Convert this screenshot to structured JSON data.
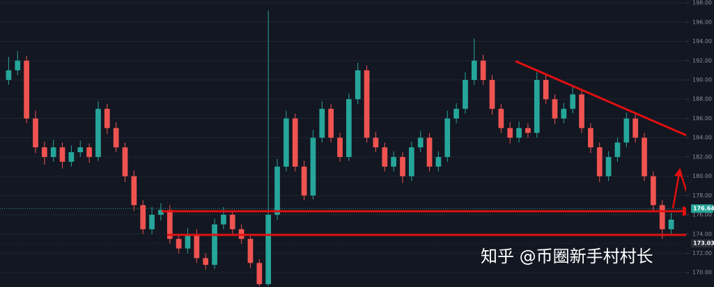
{
  "chart_data": {
    "type": "candlestick",
    "ylim": [
      168.5,
      198.3
    ],
    "yticks": [
      {
        "value": 198,
        "label": "198.00"
      },
      {
        "value": 196,
        "label": "196.00"
      },
      {
        "value": 194,
        "label": "194.00"
      },
      {
        "value": 192,
        "label": "192.00"
      },
      {
        "value": 190,
        "label": "190.00"
      },
      {
        "value": 188,
        "label": "188.00"
      },
      {
        "value": 186,
        "label": "186.00"
      },
      {
        "value": 184,
        "label": "184.00"
      },
      {
        "value": 182,
        "label": "182.00"
      },
      {
        "value": 180,
        "label": "180.00"
      },
      {
        "value": 178,
        "label": "178.00"
      },
      {
        "value": 176,
        "label": "176.00"
      },
      {
        "value": 174,
        "label": "174.00"
      },
      {
        "value": 172,
        "label": "172.00"
      },
      {
        "value": 170,
        "label": "170.00"
      }
    ],
    "up_color": "#26a69a",
    "down_color": "#ef5350",
    "price_labels": [
      {
        "value": 176.64,
        "label": "176.64",
        "color": "#26a69a"
      },
      {
        "value": 173.03,
        "label": "173.03",
        "color": "#2a2e39"
      }
    ],
    "watermark": "知乎 @币圈新手村村长",
    "ohlc": [
      [
        190,
        192.4,
        189.5,
        191
      ],
      [
        191,
        193,
        190.5,
        192
      ],
      [
        192,
        192.5,
        185.5,
        186
      ],
      [
        186,
        186.8,
        182.4,
        183
      ],
      [
        183,
        183.6,
        181.2,
        182
      ],
      [
        182,
        183.8,
        181.5,
        183
      ],
      [
        183,
        183.5,
        180.8,
        181.5
      ],
      [
        181.5,
        183.2,
        181,
        182.5
      ],
      [
        182.5,
        183.7,
        182,
        183
      ],
      [
        183,
        183.4,
        181.4,
        182
      ],
      [
        182,
        187.8,
        181.6,
        187
      ],
      [
        187,
        187.5,
        184.4,
        185
      ],
      [
        185,
        185.6,
        182.5,
        183
      ],
      [
        183,
        183.5,
        179.4,
        180
      ],
      [
        180,
        180.6,
        176.4,
        177
      ],
      [
        177,
        177.5,
        174,
        174.5
      ],
      [
        174.5,
        176.8,
        174,
        176
      ],
      [
        176,
        177.2,
        175.4,
        176.5
      ],
      [
        176.5,
        177,
        173,
        173.5
      ],
      [
        173.5,
        174,
        172,
        172.5
      ],
      [
        172.5,
        174.6,
        172,
        174
      ],
      [
        174,
        174.5,
        171,
        171.5
      ],
      [
        171.5,
        172,
        170.3,
        170.8
      ],
      [
        170.8,
        175.6,
        170.4,
        175
      ],
      [
        175,
        176.8,
        174.5,
        176
      ],
      [
        176,
        176.4,
        174,
        174.5
      ],
      [
        174.5,
        175,
        173,
        173.5
      ],
      [
        173.5,
        174,
        170.5,
        171
      ],
      [
        171,
        171.4,
        168.6,
        168.8
      ],
      [
        168.8,
        197.2,
        168.6,
        176
      ],
      [
        176,
        181.8,
        175.5,
        181
      ],
      [
        181,
        186.8,
        180.5,
        186
      ],
      [
        186,
        186.5,
        180.5,
        181
      ],
      [
        181,
        181.6,
        177.5,
        178
      ],
      [
        178,
        184.8,
        177.6,
        184
      ],
      [
        184,
        187.8,
        183.5,
        187
      ],
      [
        187,
        187.5,
        183.5,
        184
      ],
      [
        184,
        184.5,
        181.5,
        182
      ],
      [
        182,
        188.6,
        181.6,
        188
      ],
      [
        188,
        191.8,
        187.5,
        191
      ],
      [
        191,
        191.5,
        183.5,
        184
      ],
      [
        184,
        184.6,
        182.5,
        183
      ],
      [
        183,
        183.5,
        180.5,
        181
      ],
      [
        181,
        182.6,
        180.5,
        182
      ],
      [
        182,
        182.5,
        179.3,
        180
      ],
      [
        180,
        183.6,
        179.5,
        183
      ],
      [
        183,
        184.7,
        182.5,
        184
      ],
      [
        184,
        184.5,
        180.5,
        181
      ],
      [
        181,
        182.6,
        180.5,
        182
      ],
      [
        182,
        186.8,
        181.5,
        186
      ],
      [
        186,
        187.6,
        185.5,
        187
      ],
      [
        187,
        190.8,
        186.5,
        190
      ],
      [
        190,
        194.3,
        189.5,
        192
      ],
      [
        192,
        192.6,
        189.5,
        190
      ],
      [
        190,
        190.5,
        186.4,
        187
      ],
      [
        187,
        187.5,
        184.5,
        185
      ],
      [
        185,
        185.6,
        183.4,
        184
      ],
      [
        184,
        185.7,
        183.5,
        185
      ],
      [
        185,
        185.5,
        184,
        184.5
      ],
      [
        184.5,
        190.8,
        184,
        190
      ],
      [
        190,
        190.5,
        187.5,
        188
      ],
      [
        188,
        188.5,
        185.4,
        186
      ],
      [
        186,
        187.6,
        185.5,
        187
      ],
      [
        187,
        189.4,
        186.5,
        188.5
      ],
      [
        188.5,
        189,
        184.5,
        185
      ],
      [
        185,
        185.5,
        182.4,
        183
      ],
      [
        183,
        183.5,
        179.4,
        180
      ],
      [
        180,
        182.6,
        179.5,
        182
      ],
      [
        182,
        184,
        181.5,
        183.5
      ],
      [
        183.5,
        186.6,
        183,
        186
      ],
      [
        186,
        186.5,
        183.5,
        184
      ],
      [
        184,
        184.5,
        179.5,
        180
      ],
      [
        180,
        180.5,
        176.4,
        177
      ],
      [
        177,
        177.5,
        173.5,
        174.5
      ],
      [
        174.5,
        176.2,
        173.8,
        175.5
      ]
    ]
  }
}
